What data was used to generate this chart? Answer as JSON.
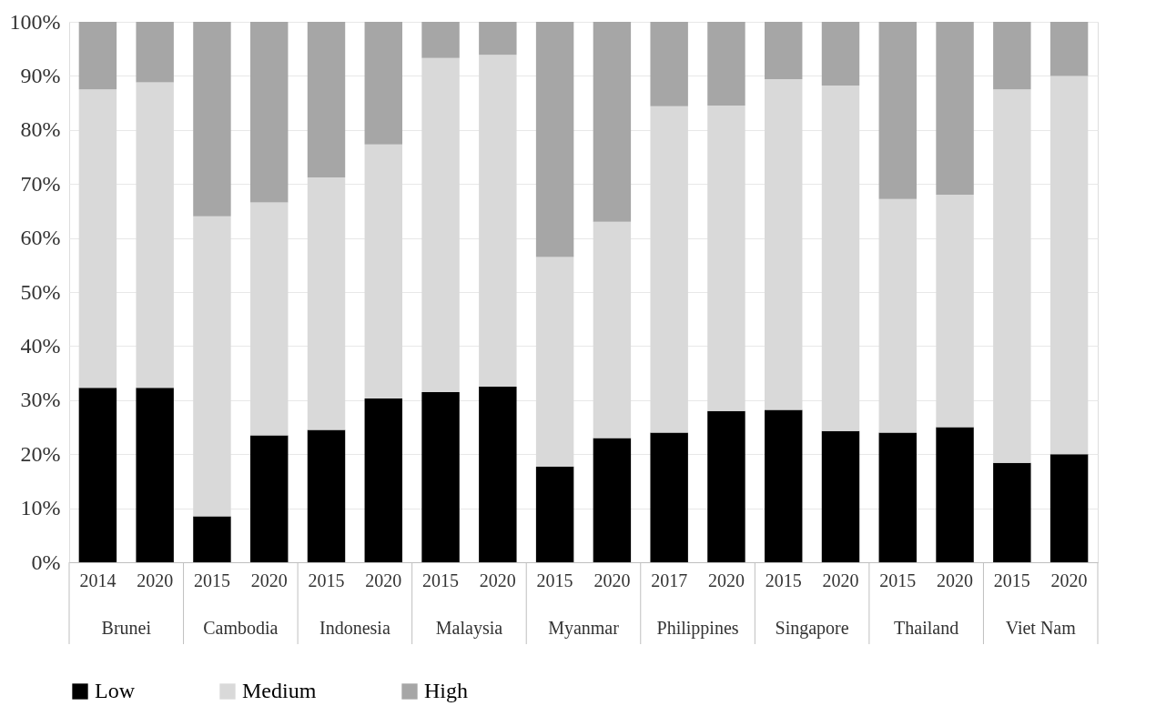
{
  "chart_data": {
    "type": "bar",
    "stacked": true,
    "categories": [
      "2014",
      "2020",
      "2015",
      "2020",
      "2015",
      "2020",
      "2015",
      "2020",
      "2015",
      "2020",
      "2017",
      "2020",
      "2015",
      "2020",
      "2015",
      "2020",
      "2015",
      "2020"
    ],
    "annotations": [
      "Brunei",
      "Cambodia",
      "Indonesia",
      "Malaysia",
      "Myanmar",
      "Philippines",
      "Singapore",
      "Thailand",
      "Viet Nam"
    ],
    "series": [
      {
        "name": "Low",
        "color": "#000000",
        "values": [
          32.3,
          32.3,
          8.5,
          23.5,
          24.5,
          30.3,
          31.5,
          32.5,
          17.7,
          23,
          24,
          28,
          28.2,
          24.3,
          24,
          25,
          18.4,
          20
        ]
      },
      {
        "name": "Medium",
        "color": "#d9d9d9",
        "values": [
          55.2,
          56.5,
          55.5,
          43.1,
          46.7,
          47,
          61.8,
          61.4,
          38.8,
          40,
          60.4,
          56.5,
          61.2,
          63.9,
          43.2,
          43,
          69.1,
          70
        ]
      },
      {
        "name": "High",
        "color": "#a6a6a6",
        "values": [
          12.5,
          11.2,
          36,
          33.4,
          28.8,
          22.7,
          6.7,
          6.1,
          43.5,
          37,
          15.6,
          15.5,
          10.6,
          11.8,
          32.8,
          32,
          12.5,
          10
        ]
      }
    ],
    "ylim": [
      0,
      100
    ],
    "yticks": [
      {
        "value": 0,
        "label": "0%"
      },
      {
        "value": 10,
        "label": "10%"
      },
      {
        "value": 20,
        "label": "20%"
      },
      {
        "value": 30,
        "label": "30%"
      },
      {
        "value": 40,
        "label": "40%"
      },
      {
        "value": 50,
        "label": "50%"
      },
      {
        "value": 60,
        "label": "60%"
      },
      {
        "value": 70,
        "label": "70%"
      },
      {
        "value": 80,
        "label": "80%"
      },
      {
        "value": 90,
        "label": "90%"
      },
      {
        "value": 100,
        "label": "100%"
      }
    ],
    "grid": "y",
    "legend": "bottom"
  }
}
